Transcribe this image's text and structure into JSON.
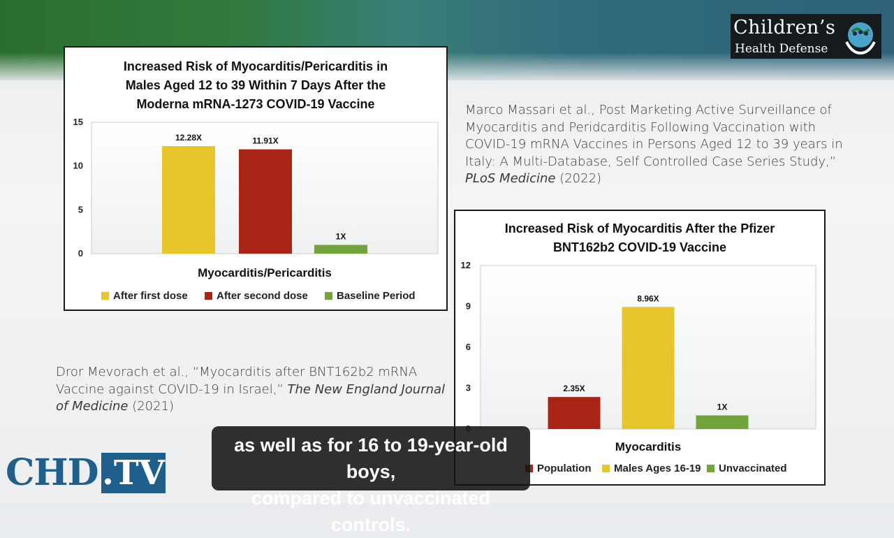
{
  "brand": {
    "line1": "Children’s",
    "line2": "Health Defense"
  },
  "citations": {
    "massari_html": "Marco Massari et al., Post Marketing Active Surveillance of Myocarditis and Peridcarditis Following Vaccination with COVID-19 mRNA Vaccines in Persons Aged 12 to 39 years in Italy: A Multi-Database, Self Controlled Case Series Study,” <i>PLoS Medicine</i> (2022)",
    "mevorach_html": "Dror Mevorach et al., “Myocarditis after BNT162b2 mRNA Vaccine against COVID-19 in Israel,” <i>The New England Journal of Medicine</i> (2021)"
  },
  "caption": {
    "line1": "as well as for 16 to 19-year-old boys,",
    "line2": "compared to unvaccinated controls."
  },
  "logo": {
    "chd": "CHD",
    "tv": ".TV"
  },
  "chart_data": [
    {
      "type": "bar",
      "title": "Increased Risk of Myocarditis/Pericarditis in\nMales Aged 12 to 39 Within 7 Days After the\nModerna mRNA-1273 COVID-19 Vaccine",
      "xlabel": "Myocarditis/Pericarditis",
      "ylabel": "",
      "ylim": [
        0,
        15
      ],
      "yticks": [
        0,
        5,
        10,
        15
      ],
      "grid": false,
      "legend_position": "bottom",
      "series": [
        {
          "name": "After first dose",
          "value": 12.28,
          "label": "12.28X",
          "color": "#e8c52a"
        },
        {
          "name": "After second dose",
          "value": 11.91,
          "label": "11.91X",
          "color": "#a82515"
        },
        {
          "name": "Baseline Period",
          "value": 1,
          "label": "1X",
          "color": "#73a43c"
        }
      ]
    },
    {
      "type": "bar",
      "title": "Increased Risk of Myocarditis After the Pfizer\nBNT162b2 COVID-19 Vaccine",
      "xlabel": "Myocarditis",
      "ylabel": "",
      "ylim": [
        0,
        12
      ],
      "yticks": [
        0,
        3,
        6,
        9,
        12
      ],
      "grid": false,
      "legend_position": "bottom",
      "series": [
        {
          "name": "Population",
          "value": 2.35,
          "label": "2.35X",
          "color": "#a82515"
        },
        {
          "name": "Males Ages 16-19",
          "value": 8.96,
          "label": "8.96X",
          "color": "#e8c52a"
        },
        {
          "name": "Unvaccinated",
          "value": 1,
          "label": "1X",
          "color": "#73a43c"
        }
      ]
    }
  ]
}
